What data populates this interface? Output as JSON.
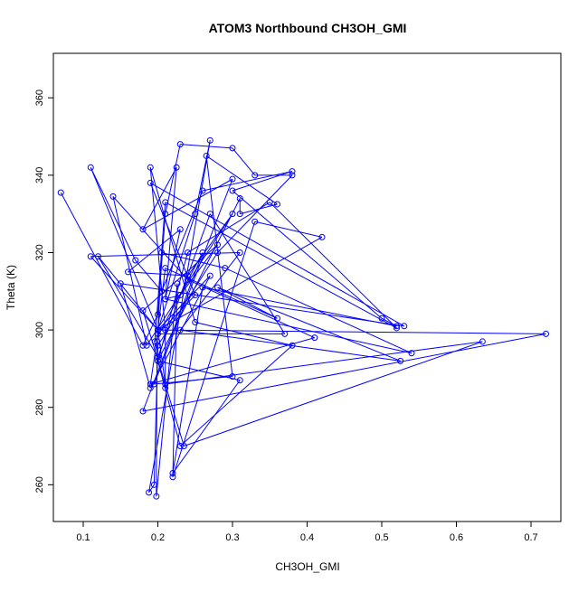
{
  "chart_data": {
    "type": "line",
    "title": "ATOM3 Northbound CH3OH_GMI",
    "xlabel": "CH3OH_GMI",
    "ylabel": "Theta (K)",
    "xlim": [
      0.06,
      0.74
    ],
    "ylim": [
      250.5,
      371.5
    ],
    "xticks": [
      "0.1",
      "0.2",
      "0.3",
      "0.4",
      "0.5",
      "0.6",
      "0.7"
    ],
    "yticks": [
      "260",
      "280",
      "300",
      "320",
      "340",
      "360"
    ],
    "series_color": "#0000FF",
    "grid": false,
    "marker": "open-circle",
    "series": [
      {
        "x": [
          0.07,
          0.18,
          0.2,
          0.21,
          0.23,
          0.3,
          0.33,
          0.38,
          0.28,
          0.2,
          0.195,
          0.188,
          0.27,
          0.25,
          0.2,
          0.199,
          0.198,
          0.226,
          0.22,
          0.33,
          0.42,
          0.2,
          0.11,
          0.17,
          0.205,
          0.26,
          0.38,
          0.3,
          0.5,
          0.52,
          0.26,
          0.22,
          0.31,
          0.2,
          0.24,
          0.35,
          0.52,
          0.21,
          0.196,
          0.26,
          0.18,
          0.72,
          0.2,
          0.21,
          0.36,
          0.28,
          0.525,
          0.23,
          0.31,
          0.11,
          0.2,
          0.12,
          0.2,
          0.27,
          0.37,
          0.2,
          0.205,
          0.29,
          0.54,
          0.21,
          0.23,
          0.16,
          0.24,
          0.3,
          0.185,
          0.14,
          0.24,
          0.41,
          0.19,
          0.2,
          0.25,
          0.19,
          0.53,
          0.15,
          0.19,
          0.27,
          0.2,
          0.21,
          0.635,
          0.235,
          0.18,
          0.28,
          0.23,
          0.21,
          0.225,
          0.18,
          0.3,
          0.195,
          0.3,
          0.265,
          0.36,
          0.31,
          0.31,
          0.2,
          0.23,
          0.38,
          0.25,
          0.19,
          0.21,
          0.21
        ],
        "y": [
          335.5,
          296,
          304,
          330,
          348,
          347,
          340,
          340,
          320,
          296,
          260,
          258,
          349,
          330,
          300,
          297,
          257,
          312,
          262,
          328,
          324,
          300,
          342,
          318,
          310,
          336,
          341,
          336,
          303,
          301,
          311,
          263,
          287,
          292,
          320,
          333,
          300.5,
          333,
          297,
          320,
          279,
          299,
          300,
          316,
          303,
          311,
          292,
          300,
          320,
          319,
          300,
          319,
          293,
          330,
          299,
          299,
          320,
          316,
          294,
          308,
          326,
          315,
          314,
          330,
          296,
          334.5,
          313,
          298,
          286,
          299,
          309,
          338,
          301,
          312,
          285,
          314,
          300,
          286,
          297,
          270,
          305,
          322,
          309,
          308,
          342,
          326,
          339,
          286,
          288,
          345,
          332.5,
          330,
          334,
          292,
          270,
          296,
          302,
          342,
          300,
          285
        ]
      }
    ]
  }
}
